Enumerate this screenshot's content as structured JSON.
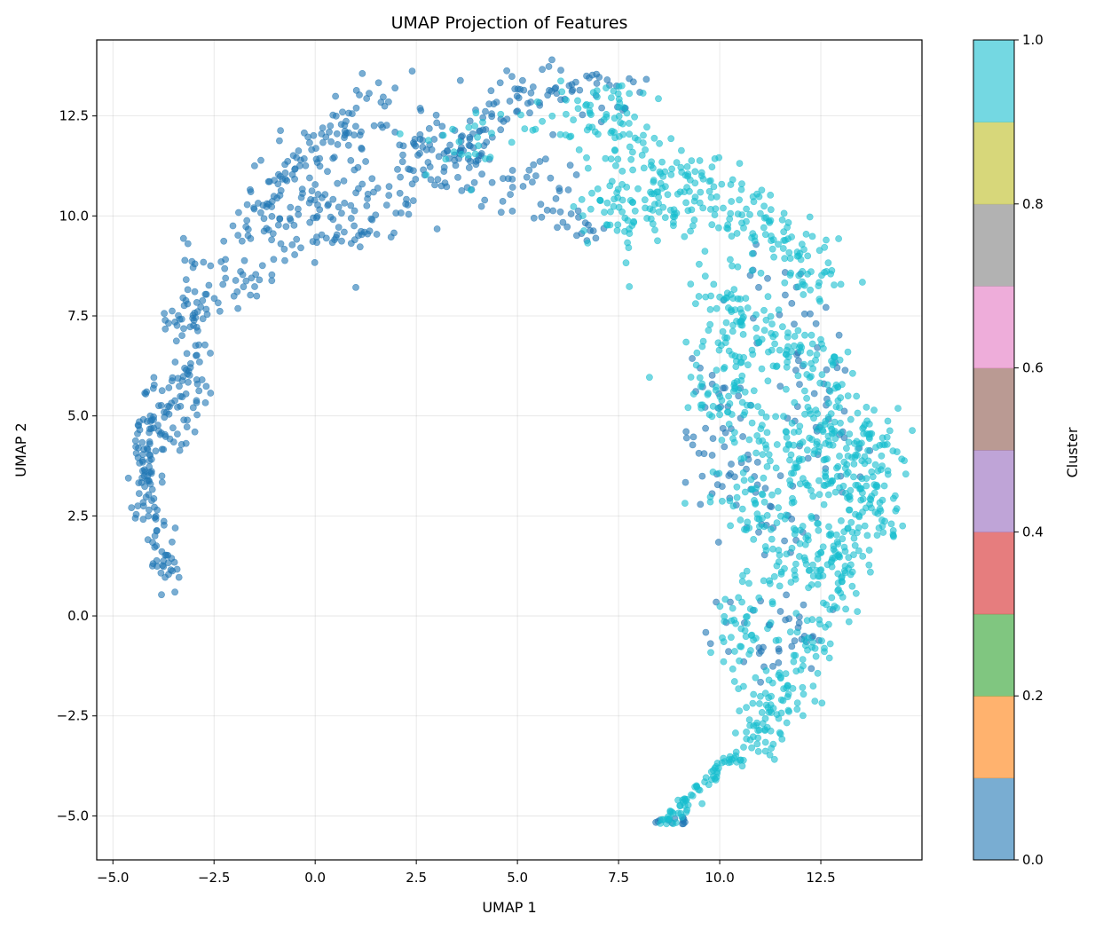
{
  "chart_data": {
    "type": "scatter",
    "title": "UMAP Projection of Features",
    "xlabel": "UMAP 1",
    "ylabel": "UMAP 2",
    "xlim": [
      -5.4,
      15.0
    ],
    "ylim": [
      -6.1,
      14.4
    ],
    "x_ticks": [
      -5.0,
      -2.5,
      0.0,
      2.5,
      5.0,
      7.5,
      10.0,
      12.5
    ],
    "x_tick_labels": [
      "−5.0",
      "−2.5",
      "0.0",
      "2.5",
      "5.0",
      "7.5",
      "10.0",
      "12.5"
    ],
    "y_ticks": [
      -5.0,
      -2.5,
      0.0,
      2.5,
      5.0,
      7.5,
      10.0,
      12.5
    ],
    "y_tick_labels": [
      "−5.0",
      "−2.5",
      "0.0",
      "2.5",
      "5.0",
      "7.5",
      "10.0",
      "12.5"
    ],
    "grid": true,
    "marker_alpha": 0.6,
    "series": [
      {
        "color": "#1f77b4",
        "segments": [
          {
            "path": [
              [
                -3.6,
                0.8
              ],
              [
                -3.9,
                2.0
              ],
              [
                -4.1,
                2.6
              ],
              [
                -4.2,
                3.5
              ],
              [
                -4.3,
                4.3
              ],
              [
                -4.0,
                5.2
              ],
              [
                -3.8,
                6.0
              ]
            ],
            "count": 120,
            "spread": 0.2
          },
          {
            "path": [
              [
                -3.9,
                4.0
              ],
              [
                -3.5,
                4.6
              ],
              [
                -3.3,
                5.4
              ],
              [
                -3.1,
                6.3
              ],
              [
                -3.4,
                7.2
              ],
              [
                -3.0,
                7.9
              ],
              [
                -2.7,
                9.0
              ]
            ],
            "count": 100,
            "spread": 0.3
          },
          {
            "path": [
              [
                -3.2,
                6.8
              ],
              [
                -2.5,
                7.7
              ],
              [
                -2.0,
                8.3
              ],
              [
                -1.4,
                8.9
              ],
              [
                -1.8,
                7.9
              ]
            ],
            "count": 40,
            "spread": 0.3
          },
          {
            "path": [
              [
                -1.5,
                9.6
              ],
              [
                -1.2,
                10.8
              ],
              [
                -0.5,
                11.4
              ],
              [
                0.3,
                11.9
              ],
              [
                1.0,
                12.5
              ],
              [
                1.9,
                13.1
              ]
            ],
            "count": 110,
            "spread": 0.35
          },
          {
            "path": [
              [
                -1.0,
                9.2
              ],
              [
                -0.3,
                9.6
              ],
              [
                0.5,
                10.0
              ],
              [
                1.3,
                9.6
              ],
              [
                2.2,
                10.7
              ],
              [
                2.9,
                11.6
              ]
            ],
            "count": 90,
            "spread": 0.45
          },
          {
            "path": [
              [
                -0.6,
                10.2
              ],
              [
                0.0,
                10.8
              ],
              [
                0.6,
                11.0
              ],
              [
                1.5,
                10.6
              ]
            ],
            "count": 40,
            "spread": 0.35
          },
          {
            "path": [
              [
                2.3,
                11.8
              ],
              [
                3.0,
                11.4
              ],
              [
                3.8,
                11.7
              ],
              [
                4.5,
                12.3
              ],
              [
                5.0,
                12.9
              ],
              [
                5.5,
                13.4
              ],
              [
                6.5,
                13.3
              ],
              [
                7.8,
                13.1
              ]
            ],
            "count": 120,
            "spread": 0.35
          },
          {
            "path": [
              [
                3.0,
                12.2
              ],
              [
                4.0,
                11.2
              ],
              [
                5.0,
                10.6
              ],
              [
                5.8,
                11.3
              ],
              [
                6.8,
                10.9
              ]
            ],
            "count": 60,
            "spread": 0.35
          },
          {
            "path": [
              [
                5.5,
                10.1
              ],
              [
                6.3,
                9.8
              ],
              [
                7.0,
                9.6
              ]
            ],
            "count": 20,
            "spread": 0.2
          },
          {
            "path": [
              [
                9.5,
                6.5
              ],
              [
                10.0,
                5.5
              ],
              [
                9.8,
                4.0
              ],
              [
                10.3,
                2.8
              ],
              [
                10.8,
                3.3
              ],
              [
                11.0,
                2.2
              ],
              [
                11.5,
                1.8
              ]
            ],
            "count": 70,
            "spread": 0.5
          },
          {
            "path": [
              [
                10.0,
                -0.5
              ],
              [
                10.8,
                -0.2
              ],
              [
                11.5,
                -1.0
              ],
              [
                12.2,
                0.2
              ],
              [
                11.0,
                -1.5
              ]
            ],
            "count": 40,
            "spread": 0.4
          },
          {
            "path": [
              [
                10.8,
                8.5
              ],
              [
                11.8,
                7.8
              ],
              [
                12.5,
                6.3
              ],
              [
                13.0,
                5.3
              ],
              [
                12.5,
                3.6
              ],
              [
                13.2,
                3.8
              ],
              [
                11.5,
                5.3
              ]
            ],
            "count": 60,
            "spread": 0.5
          },
          {
            "path": [
              [
                8.5,
                -5.2
              ],
              [
                9.1,
                -5.1
              ]
            ],
            "count": 12,
            "spread": 0.08
          }
        ]
      },
      {
        "color": "#17becf",
        "segments": [
          {
            "path": [
              [
                5.8,
                12.3
              ],
              [
                6.5,
                12.6
              ],
              [
                7.5,
                12.4
              ],
              [
                8.0,
                11.6
              ],
              [
                8.8,
                10.9
              ],
              [
                9.6,
                10.6
              ],
              [
                10.2,
                10.2
              ],
              [
                11.0,
                9.8
              ],
              [
                11.8,
                9.2
              ],
              [
                12.5,
                8.2
              ]
            ],
            "count": 260,
            "spread": 0.45
          },
          {
            "path": [
              [
                7.0,
                10.7
              ],
              [
                7.7,
                9.8
              ],
              [
                8.6,
                9.8
              ],
              [
                9.2,
                10.0
              ]
            ],
            "count": 70,
            "spread": 0.4
          },
          {
            "path": [
              [
                9.8,
                8.2
              ],
              [
                10.5,
                7.2
              ],
              [
                11.3,
                6.8
              ],
              [
                12.3,
                6.4
              ],
              [
                13.0,
                5.2
              ],
              [
                13.6,
                4.5
              ],
              [
                13.9,
                3.2
              ],
              [
                13.8,
                2.2
              ]
            ],
            "count": 260,
            "spread": 0.5
          },
          {
            "path": [
              [
                9.8,
                6.2
              ],
              [
                10.3,
                5.0
              ],
              [
                11.0,
                4.5
              ],
              [
                11.8,
                3.8
              ],
              [
                12.5,
                4.4
              ],
              [
                13.2,
                3.2
              ],
              [
                12.4,
                2.2
              ]
            ],
            "count": 220,
            "spread": 0.55
          },
          {
            "path": [
              [
                10.2,
                3.5
              ],
              [
                11.0,
                2.4
              ],
              [
                11.7,
                1.4
              ],
              [
                12.5,
                1.4
              ],
              [
                13.3,
                1.6
              ],
              [
                12.2,
                0.9
              ]
            ],
            "count": 140,
            "spread": 0.45
          },
          {
            "path": [
              [
                10.8,
                0.8
              ],
              [
                10.3,
                -0.6
              ],
              [
                10.8,
                -1.8
              ],
              [
                11.5,
                -2.4
              ],
              [
                11.2,
                -3.2
              ],
              [
                10.7,
                -2.9
              ],
              [
                11.8,
                -1.6
              ],
              [
                12.5,
                -0.8
              ],
              [
                12.6,
                0.4
              ]
            ],
            "count": 170,
            "spread": 0.38
          },
          {
            "path": [
              [
                10.6,
                -3.4
              ],
              [
                10.0,
                -3.8
              ],
              [
                9.5,
                -4.3
              ],
              [
                9.0,
                -4.8
              ],
              [
                8.6,
                -5.2
              ]
            ],
            "count": 70,
            "spread": 0.1
          },
          {
            "path": [
              [
                3.0,
                11.6
              ],
              [
                4.5,
                12.0
              ],
              [
                5.2,
                12.7
              ]
            ],
            "count": 25,
            "spread": 0.5
          }
        ]
      }
    ],
    "colorbar": {
      "label": "Cluster",
      "min": 0.0,
      "max": 1.0,
      "ticks": [
        0.0,
        0.2,
        0.4,
        0.6,
        0.8,
        1.0
      ],
      "tick_labels": [
        "0.0",
        "0.2",
        "0.4",
        "0.6",
        "0.8",
        "1.0"
      ],
      "colors": [
        "#1f77b4",
        "#ff7f0e",
        "#2ca02c",
        "#d62728",
        "#9467bd",
        "#8c564b",
        "#e377c2",
        "#7f7f7f",
        "#bcbd22",
        "#17becf"
      ],
      "alpha": 0.6
    }
  }
}
